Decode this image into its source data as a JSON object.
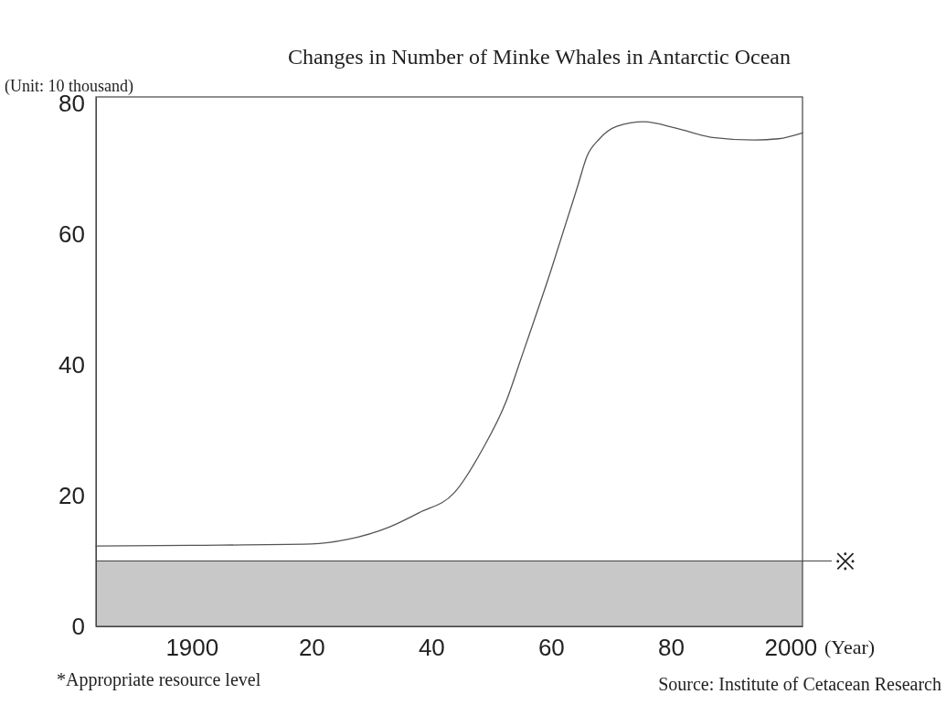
{
  "chart_data": {
    "type": "line",
    "title": "Changes in Number of Minke Whales in Antarctic Ocean",
    "ylabel": "(Unit: 10 thousand)",
    "xlabel": "(Year)",
    "x": [
      1884,
      1900,
      1920,
      1926,
      1933,
      1938,
      1943.8,
      1948.5,
      1952.5,
      1955,
      1960,
      1964.5,
      1966,
      1968,
      1971,
      1975.5,
      1981,
      1987,
      1994,
      1998,
      2002
    ],
    "series": [
      {
        "color": "#555555",
        "values": [
          12.3,
          12.4,
          12.6,
          13.3,
          15.2,
          17.4,
          20.4,
          27,
          34.4,
          41,
          54.5,
          67.5,
          71.9,
          74.5,
          76.5,
          77.2,
          76.2,
          74.8,
          74.4,
          74.6,
          75.5
        ]
      }
    ],
    "xlim": [
      1884,
      2002
    ],
    "ylim": [
      0,
      81
    ],
    "xticks": [
      1900,
      {
        "value": 1920,
        "label": "20"
      },
      {
        "value": 1940,
        "label": "40"
      },
      {
        "value": 1960,
        "label": "60"
      },
      {
        "value": 1980,
        "label": "80"
      },
      2000
    ],
    "yticks": [
      0,
      20,
      40,
      60,
      80
    ],
    "bands": [
      {
        "axis": "y",
        "from": 0,
        "to": 10,
        "color": "#c8c8c8"
      }
    ],
    "ref_lines": [
      {
        "axis": "y",
        "value": 10,
        "label": "※"
      }
    ],
    "annotations": [
      "*Appropriate resource level",
      "Source: Institute of Cetacean Research"
    ],
    "grid": false,
    "marker": "none",
    "line_style": "solid"
  }
}
